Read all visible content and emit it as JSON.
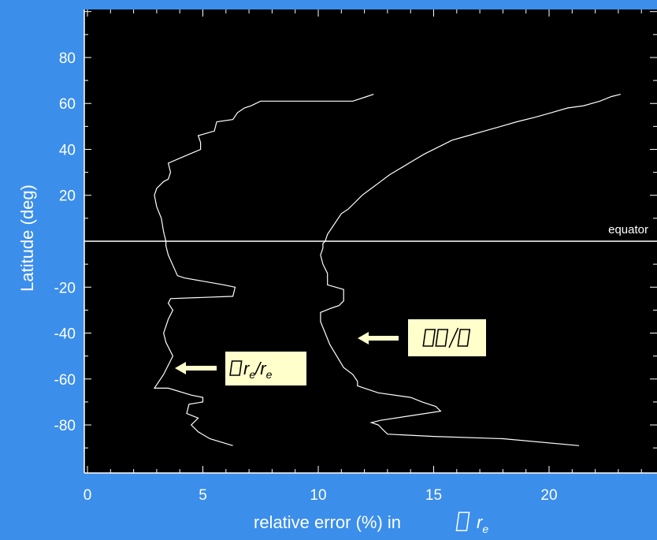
{
  "chart_data": {
    "type": "line",
    "xlabel": "relative error (%) in",
    "xlabel_symbol": "r",
    "xlabel_symbol_sub": "e",
    "ylabel": "Latitude (deg)",
    "xlim": [
      0,
      24.5
    ],
    "ylim": [
      -93,
      100
    ],
    "x_ticks": [
      "0",
      "5",
      "10",
      "15",
      "20"
    ],
    "y_ticks": [
      "80",
      "60",
      "40",
      "20",
      "-20",
      "-40",
      "-60",
      "-80"
    ],
    "grid": false,
    "series": [
      {
        "label_prefix": "",
        "label_r": "r",
        "label_sub": "e",
        "label_slash": "/",
        "label_r2": "r",
        "label_sub2": "e",
        "points": [
          [
            6.3,
            -89
          ],
          [
            5.3,
            -86
          ],
          [
            4.8,
            -83
          ],
          [
            4.5,
            -80
          ],
          [
            4.8,
            -77
          ],
          [
            4.3,
            -75
          ],
          [
            4.4,
            -71
          ],
          [
            5.0,
            -70
          ],
          [
            5.0,
            -68
          ],
          [
            4.5,
            -67
          ],
          [
            3.5,
            -64
          ],
          [
            2.9,
            -64
          ],
          [
            3.3,
            -58
          ],
          [
            3.7,
            -50
          ],
          [
            3.4,
            -44
          ],
          [
            3.3,
            -40
          ],
          [
            3.5,
            -34
          ],
          [
            3.7,
            -30
          ],
          [
            3.5,
            -27
          ],
          [
            3.6,
            -25
          ],
          [
            6.3,
            -24
          ],
          [
            6.4,
            -20
          ],
          [
            5.9,
            -19
          ],
          [
            4.2,
            -16
          ],
          [
            3.9,
            -15
          ],
          [
            3.5,
            -6
          ],
          [
            3.4,
            -2
          ],
          [
            3.4,
            0
          ],
          [
            3.3,
            4
          ],
          [
            3.2,
            10
          ],
          [
            3.0,
            15
          ],
          [
            2.9,
            20
          ],
          [
            3.0,
            23
          ],
          [
            3.3,
            26
          ],
          [
            3.5,
            27
          ],
          [
            3.6,
            30
          ],
          [
            3.5,
            34
          ],
          [
            4.2,
            37
          ],
          [
            4.9,
            40
          ],
          [
            4.9,
            43
          ],
          [
            4.8,
            46
          ],
          [
            5.5,
            48
          ],
          [
            5.6,
            52
          ],
          [
            6.3,
            53
          ],
          [
            6.5,
            56
          ],
          [
            6.8,
            58
          ],
          [
            7.1,
            59
          ],
          [
            7.5,
            61
          ],
          [
            8.0,
            61
          ],
          [
            9.2,
            61
          ],
          [
            11.0,
            61
          ],
          [
            11.5,
            61
          ],
          [
            12.1,
            63
          ],
          [
            12.4,
            64
          ]
        ]
      },
      {
        "label_prefix": "",
        "points": [
          [
            21.3,
            -89
          ],
          [
            18.0,
            -86
          ],
          [
            15.0,
            -85
          ],
          [
            13.0,
            -84
          ],
          [
            12.8,
            -82
          ],
          [
            12.6,
            -80
          ],
          [
            12.3,
            -79
          ],
          [
            12.7,
            -78
          ],
          [
            14.0,
            -76
          ],
          [
            15.3,
            -74
          ],
          [
            15.1,
            -72
          ],
          [
            14.8,
            -71
          ],
          [
            14.5,
            -70
          ],
          [
            14.0,
            -68
          ],
          [
            12.6,
            -66
          ],
          [
            12.0,
            -64
          ],
          [
            11.7,
            -63
          ],
          [
            11.7,
            -61
          ],
          [
            11.5,
            -58
          ],
          [
            11.1,
            -55
          ],
          [
            10.8,
            -50
          ],
          [
            10.5,
            -45
          ],
          [
            10.3,
            -40
          ],
          [
            10.1,
            -35
          ],
          [
            10.1,
            -31
          ],
          [
            10.6,
            -29
          ],
          [
            10.9,
            -28
          ],
          [
            11.1,
            -26
          ],
          [
            11.1,
            -21
          ],
          [
            10.4,
            -19
          ],
          [
            10.4,
            -14
          ],
          [
            10.2,
            -10
          ],
          [
            10.1,
            -6
          ],
          [
            10.2,
            -3
          ],
          [
            10.2,
            -1
          ],
          [
            10.3,
            0
          ],
          [
            10.4,
            3
          ],
          [
            10.6,
            6
          ],
          [
            10.8,
            9
          ],
          [
            11.0,
            12
          ],
          [
            11.3,
            14
          ],
          [
            11.6,
            17
          ],
          [
            11.9,
            20
          ],
          [
            12.3,
            23
          ],
          [
            12.7,
            26
          ],
          [
            13.1,
            29
          ],
          [
            13.6,
            32
          ],
          [
            14.1,
            35
          ],
          [
            14.6,
            38
          ],
          [
            15.2,
            41
          ],
          [
            15.8,
            44
          ],
          [
            16.5,
            46
          ],
          [
            17.2,
            48
          ],
          [
            17.9,
            50
          ],
          [
            18.6,
            52
          ],
          [
            19.4,
            54
          ],
          [
            20.1,
            56
          ],
          [
            20.8,
            58
          ],
          [
            21.5,
            59
          ],
          [
            22.2,
            61
          ],
          [
            22.7,
            63
          ],
          [
            23.1,
            64
          ]
        ]
      }
    ],
    "annotations": {
      "equator_label": "equator",
      "equator_lat": 0
    },
    "colors": {
      "background": "#3b8eea",
      "plot_area": "#000000",
      "curve": "#ffffff",
      "label_box": "#ffffcc",
      "arrow": "#ffffcc"
    }
  }
}
